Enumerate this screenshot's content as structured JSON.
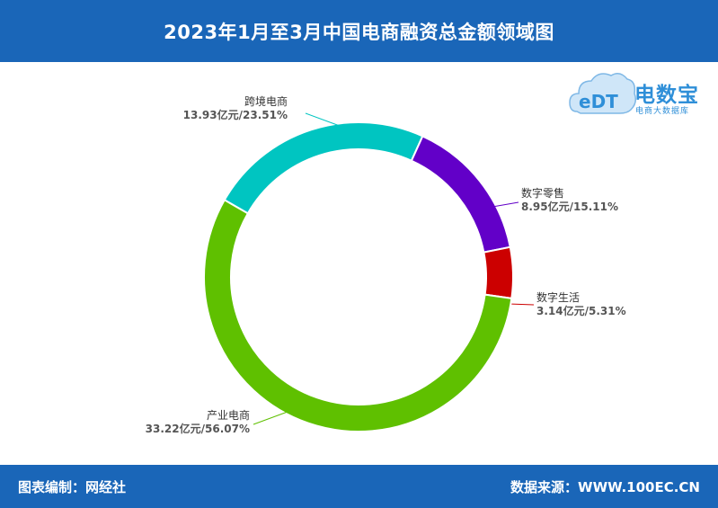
{
  "header": {
    "title": "2023年1月至3月中国电商融资总金额领域图"
  },
  "logo": {
    "mark": "eDT",
    "name": "电数宝",
    "subtitle": "电商大数据库"
  },
  "footer": {
    "left": "图表编制：网经社",
    "right": "数据来源：WWW.100EC.CN"
  },
  "chart_data": {
    "type": "pie",
    "donut": true,
    "title": "2023年1月至3月中国电商融资总金额领域图",
    "unit": "亿元",
    "slices": [
      {
        "name": "跨境电商",
        "amount": 13.93,
        "percent": 23.51,
        "label": "13.93亿元/23.51%",
        "color": "#00c5c1"
      },
      {
        "name": "数字零售",
        "amount": 8.95,
        "percent": 15.11,
        "label": "8.95亿元/15.11%",
        "color": "#6200c8"
      },
      {
        "name": "数字生活",
        "amount": 3.14,
        "percent": 5.31,
        "label": "3.14亿元/5.31%",
        "color": "#cc0000"
      },
      {
        "name": "产业电商",
        "amount": 33.22,
        "percent": 56.07,
        "label": "33.22亿元/56.07%",
        "color": "#5fc000"
      }
    ],
    "legend": "none"
  }
}
